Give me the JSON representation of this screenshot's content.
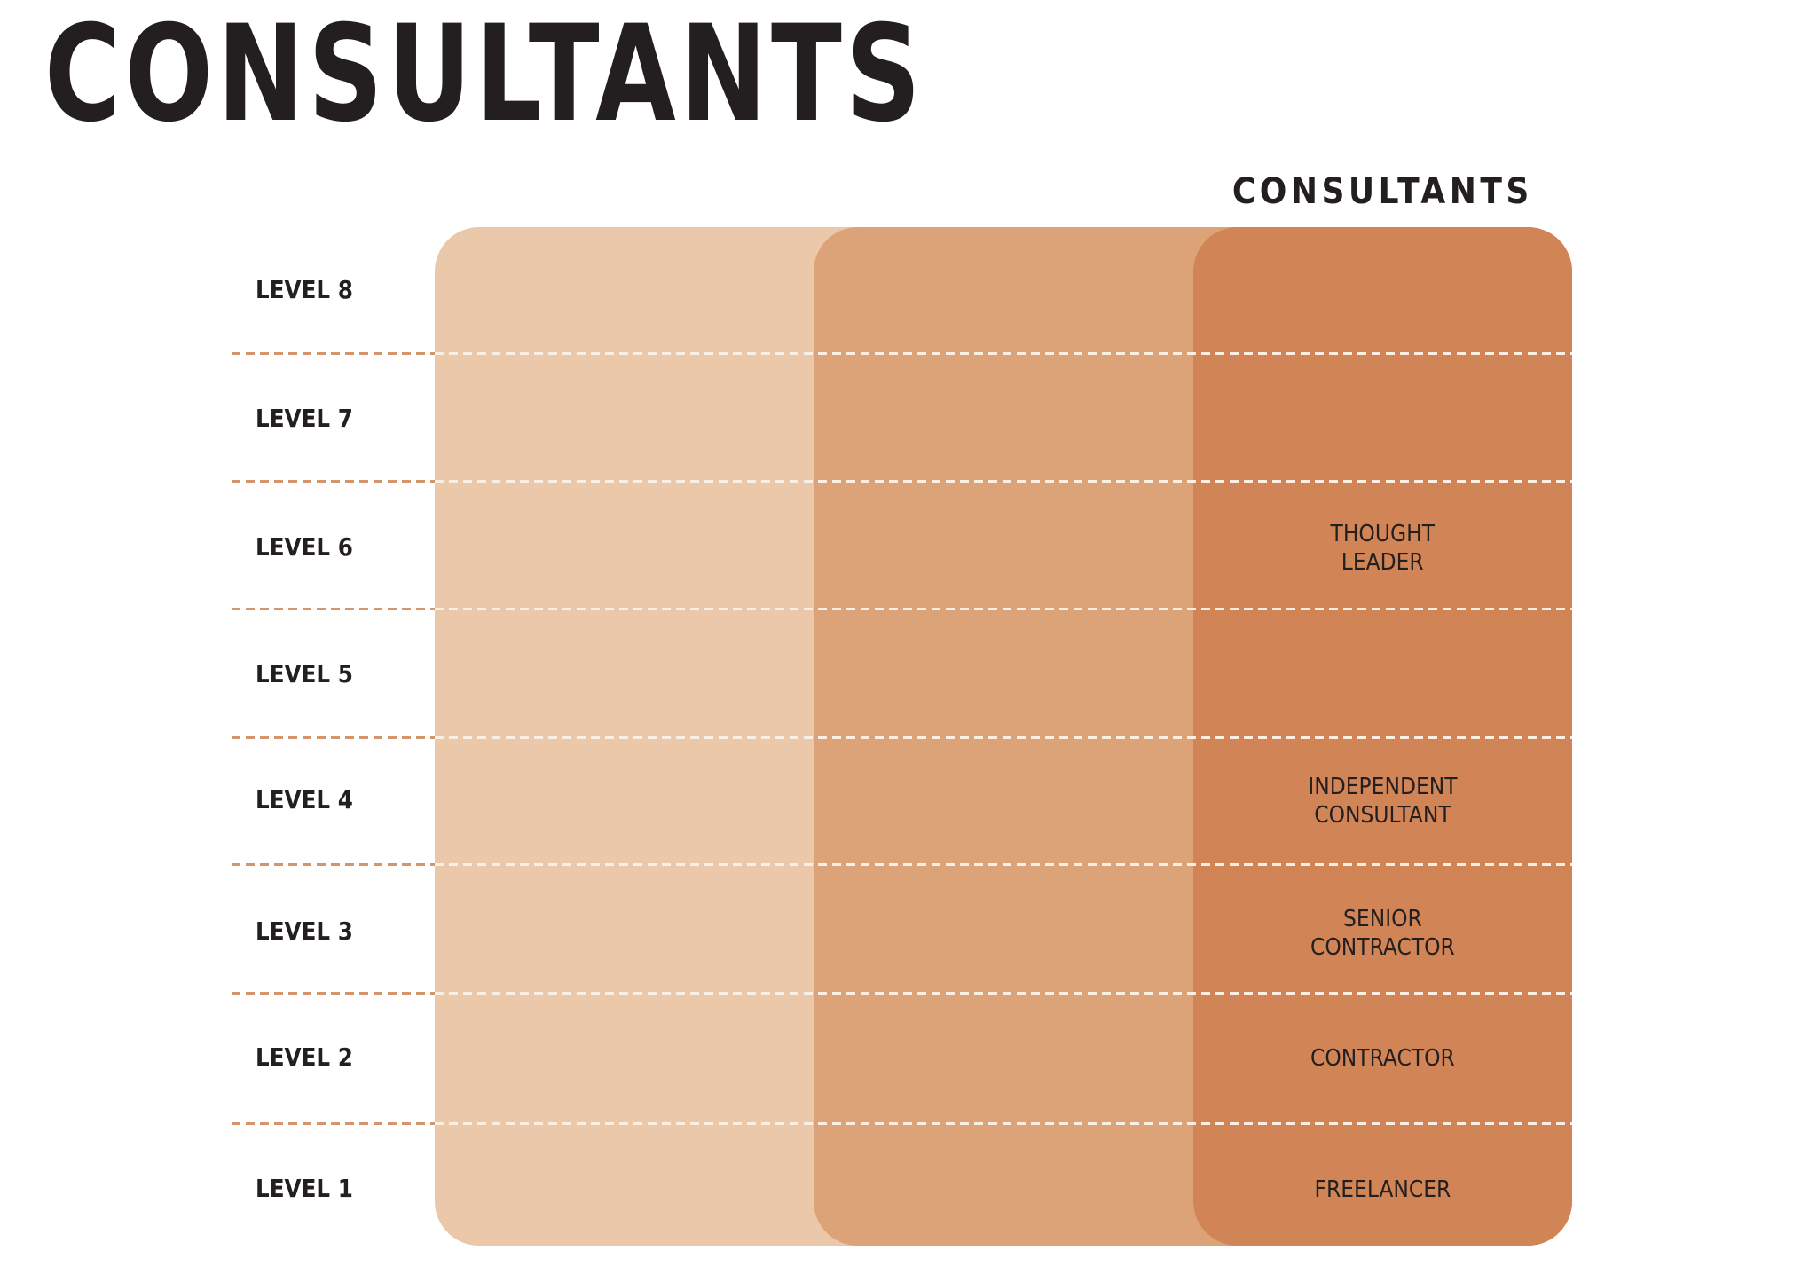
{
  "title": "CONSULTANTS",
  "column_header": "CONSULTANTS",
  "colors": {
    "band_light": "#EAC8A9",
    "band_medium": "#DCA278",
    "band_dark": "#D18455",
    "divider_outside": "#D4956C",
    "divider_inside": "#FBEFE4",
    "text": "#231F20"
  },
  "levels": [
    {
      "label": "LEVEL 8",
      "role": []
    },
    {
      "label": "LEVEL 7",
      "role": []
    },
    {
      "label": "LEVEL 6",
      "role": [
        "THOUGHT",
        "LEADER"
      ]
    },
    {
      "label": "LEVEL 5",
      "role": []
    },
    {
      "label": "LEVEL 4",
      "role": [
        "INDEPENDENT",
        "CONSULTANT"
      ]
    },
    {
      "label": "LEVEL 3",
      "role": [
        "SENIOR",
        "CONTRACTOR"
      ]
    },
    {
      "label": "LEVEL 2",
      "role": [
        "CONTRACTOR"
      ]
    },
    {
      "label": "LEVEL 1",
      "role": [
        "FREELANCER"
      ]
    }
  ]
}
